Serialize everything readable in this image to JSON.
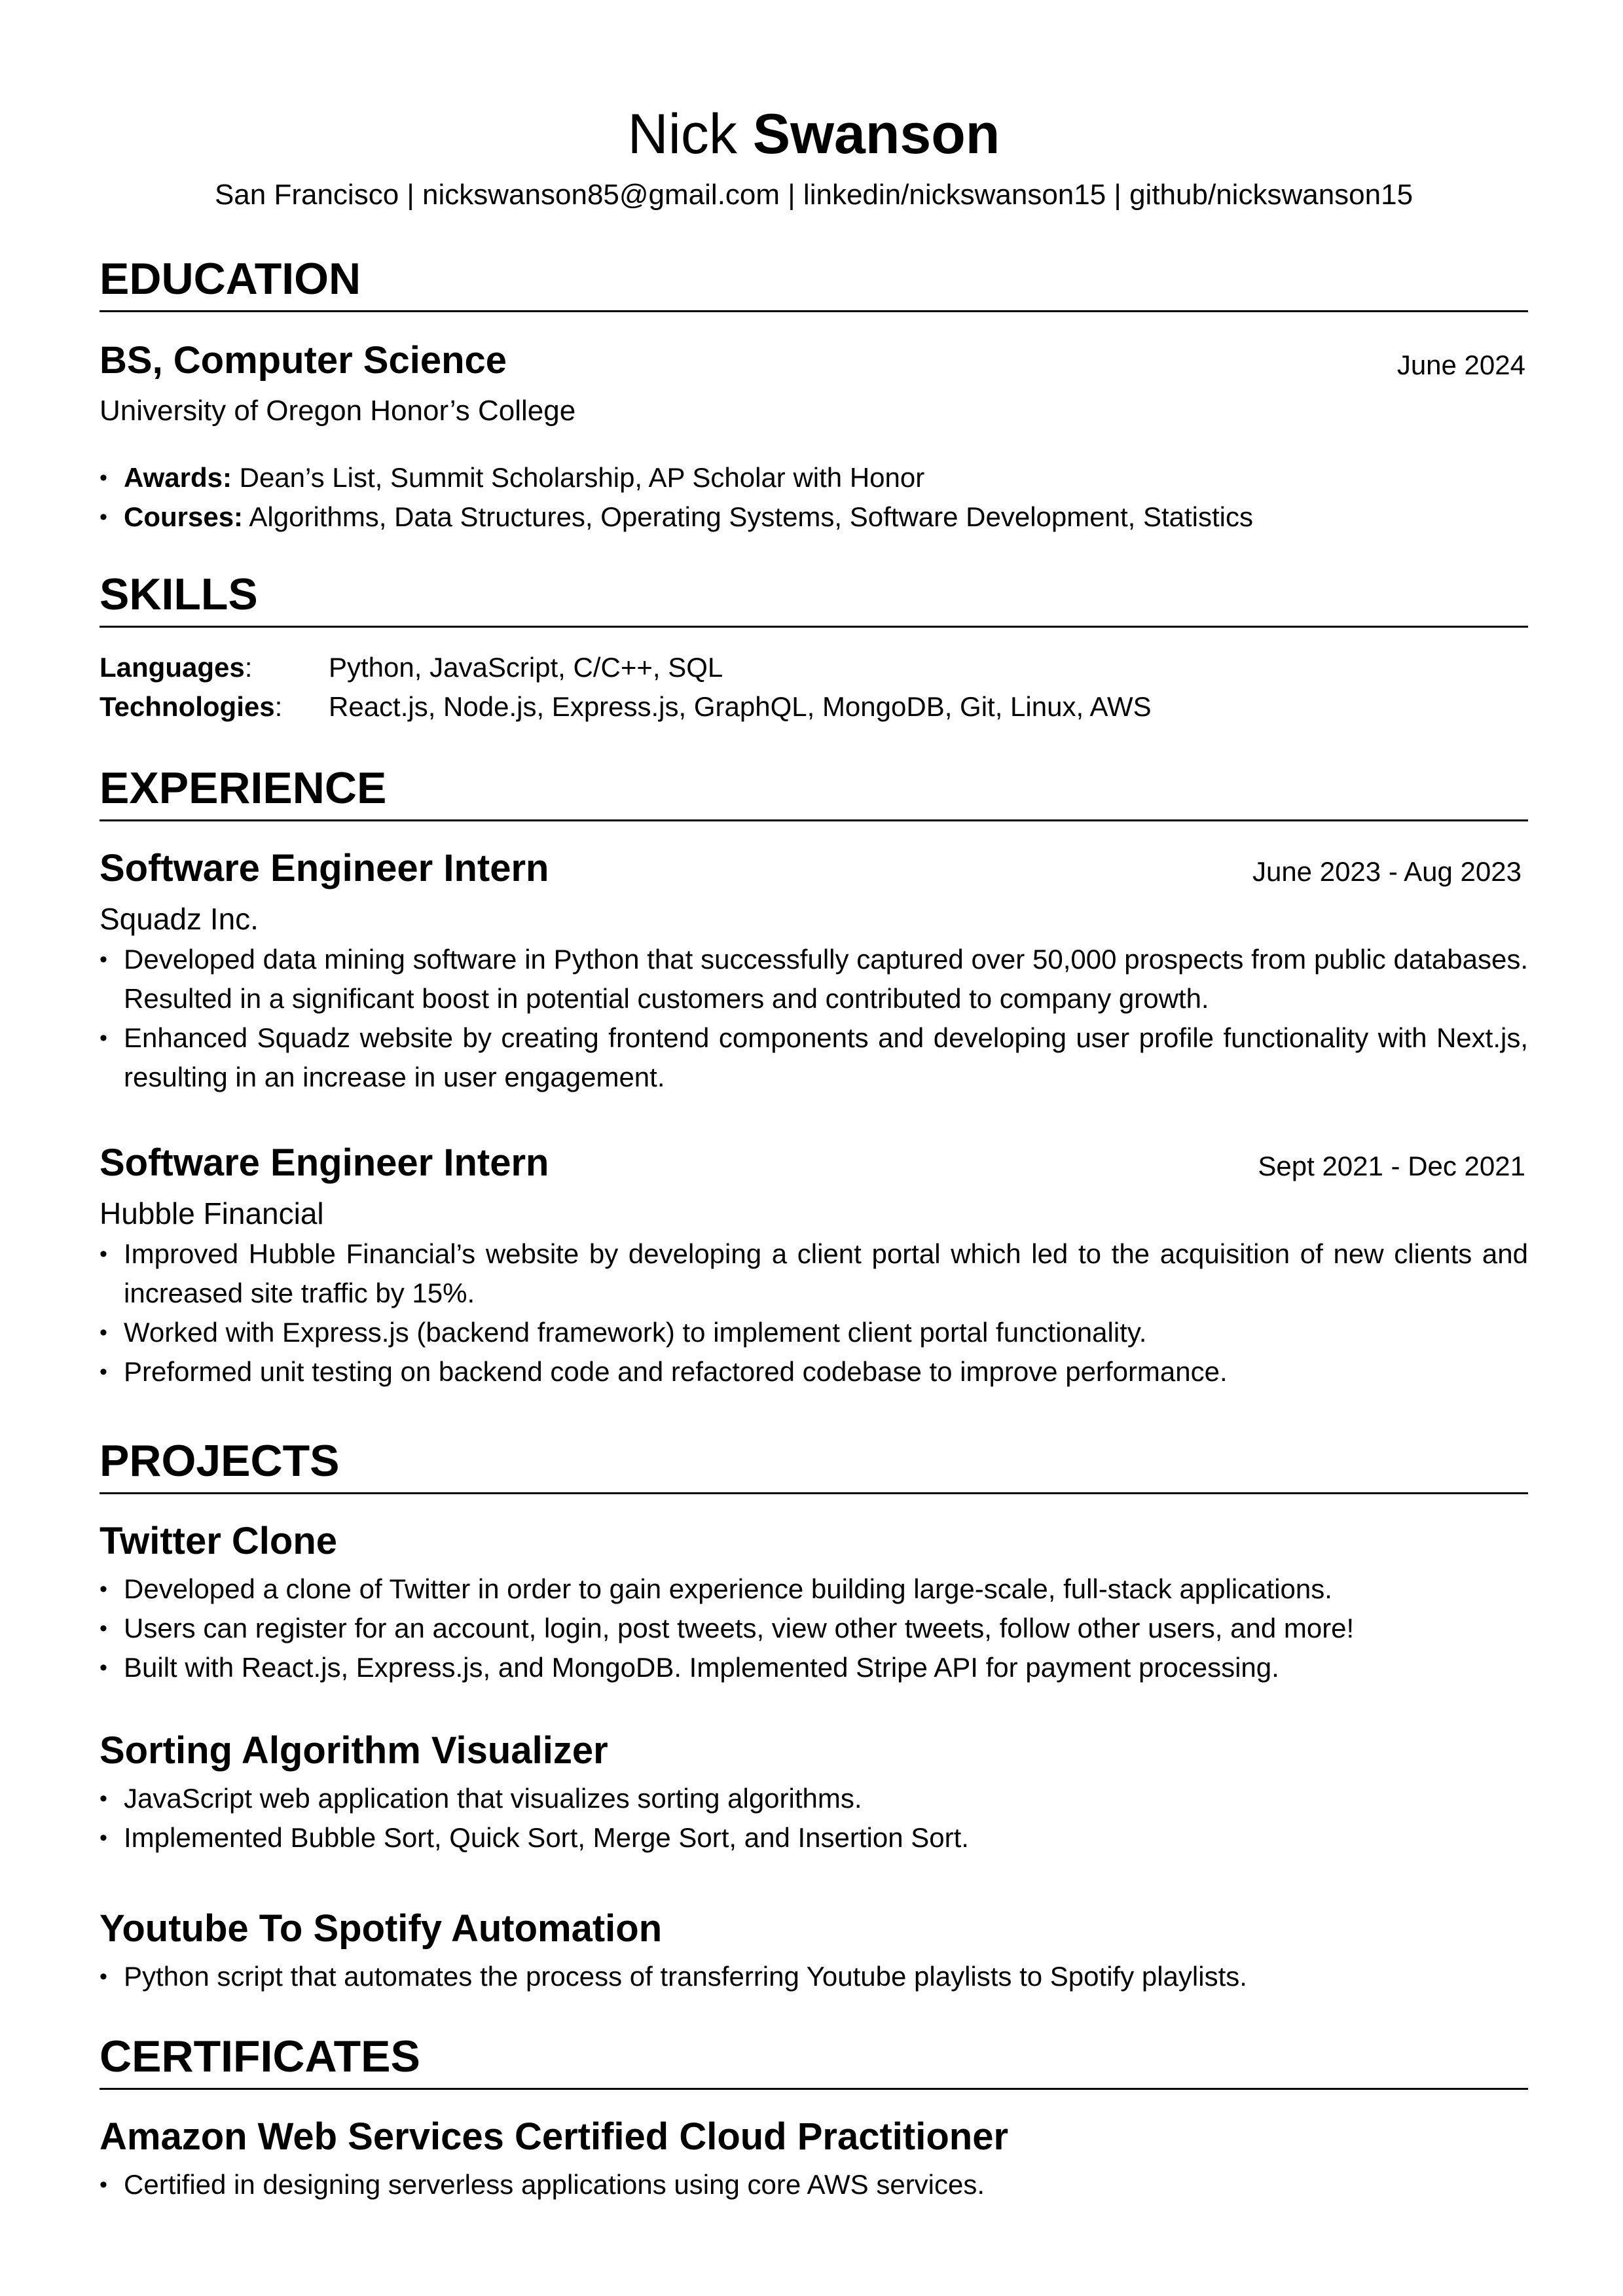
{
  "header": {
    "first_name": "Nick",
    "last_name": "Swanson",
    "contact": "San Francisco | nickswanson85@gmail.com | linkedin/nickswanson15 | github/nickswanson15"
  },
  "education": {
    "title": "EDUCATION",
    "degree": "BS, Computer Science",
    "date": "June 2024",
    "school": "University of Oregon Honor’s College",
    "bullets": [
      {
        "label": "Awards:",
        "text": " Dean’s List, Summit Scholarship, AP Scholar with Honor"
      },
      {
        "label": "Courses:",
        "text": " Algorithms, Data Structures, Operating Systems, Software Development, Statistics"
      }
    ]
  },
  "skills": {
    "title": "SKILLS",
    "rows": [
      {
        "label": "Languages",
        "value": "Python, JavaScript, C/C++, SQL"
      },
      {
        "label": "Technologies",
        "value": "React.js, Node.js, Express.js, GraphQL, MongoDB, Git, Linux, AWS"
      }
    ]
  },
  "experience": {
    "title": "EXPERIENCE",
    "jobs": [
      {
        "role": "Software Engineer Intern",
        "date": "June 2023 - Aug 2023",
        "company": "Squadz Inc.",
        "bullets": [
          "Developed data mining software in Python that successfully captured over 50,000 prospects from public databases. Resulted in a significant boost in potential customers and contributed to company growth.",
          "Enhanced Squadz website by creating frontend components and developing user profile functionality with Next.js, resulting in an increase in user engagement."
        ]
      },
      {
        "role": "Software Engineer Intern",
        "date": "Sept 2021 - Dec 2021",
        "company": "Hubble Financial",
        "bullets": [
          "Improved Hubble Financial’s website by developing a client portal which led to the acquisition of new clients and increased site traffic by 15%.",
          "Worked with Express.js (backend framework) to implement client portal functionality.",
          "Preformed unit testing on backend code and refactored codebase to improve performance."
        ]
      }
    ]
  },
  "projects": {
    "title": "PROJECTS",
    "items": [
      {
        "name": "Twitter Clone",
        "bullets": [
          "Developed a clone of Twitter in order to gain experience building large-scale, full-stack applications.",
          "Users can register for an account, login, post tweets, view other tweets, follow other users, and more!",
          "Built with React.js, Express.js, and MongoDB. Implemented Stripe API for payment processing."
        ]
      },
      {
        "name": "Sorting Algorithm Visualizer",
        "bullets": [
          "JavaScript web application that visualizes sorting algorithms.",
          "Implemented Bubble Sort, Quick Sort, Merge Sort, and Insertion Sort."
        ]
      },
      {
        "name": "Youtube To Spotify Automation",
        "bullets": [
          "Python script that automates the process of transferring Youtube playlists to Spotify playlists."
        ]
      }
    ]
  },
  "certificates": {
    "title": "CERTIFICATES",
    "items": [
      {
        "name": "Amazon Web Services Certified Cloud Practitioner",
        "bullets": [
          "Certified in designing serverless applications using core AWS services."
        ]
      }
    ]
  }
}
